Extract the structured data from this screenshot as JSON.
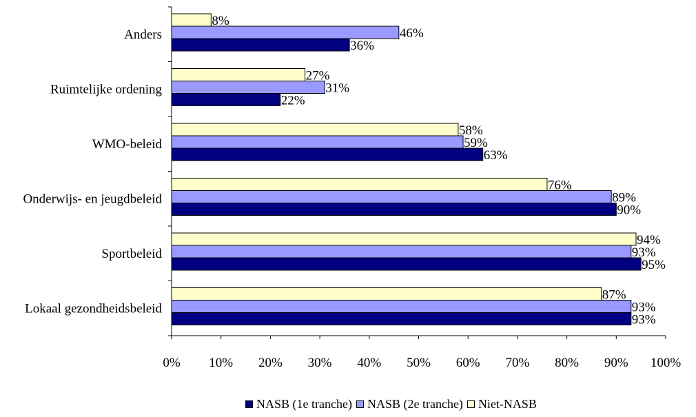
{
  "chart_data": {
    "type": "bar",
    "orientation": "horizontal",
    "categories": [
      "Anders",
      "Ruimtelijke ordening",
      "WMO-beleid",
      "Onderwijs- en jeugdbeleid",
      "Sportbeleid",
      "Lokaal gezondheidsbeleid"
    ],
    "series": [
      {
        "name": "Niet-NASB",
        "color": "#FFFFCC",
        "values": [
          8,
          27,
          58,
          76,
          94,
          87
        ],
        "labels": [
          "8%",
          "27%",
          "58%",
          "76%",
          "94%",
          "87%"
        ]
      },
      {
        "name": "NASB (2e tranche)",
        "color": "#9999FF",
        "values": [
          46,
          31,
          59,
          89,
          93,
          93
        ],
        "labels": [
          "46%",
          "31%",
          "59%",
          "89%",
          "93%",
          "93%"
        ]
      },
      {
        "name": "NASB (1e tranche)",
        "color": "#000080",
        "values": [
          36,
          22,
          63,
          90,
          95,
          93
        ],
        "labels": [
          "36%",
          "22%",
          "63%",
          "90%",
          "95%",
          "93%"
        ]
      }
    ],
    "xlim": [
      0,
      100
    ],
    "x_tick_labels": [
      "0%",
      "10%",
      "20%",
      "30%",
      "40%",
      "50%",
      "60%",
      "70%",
      "80%",
      "90%",
      "100%"
    ],
    "grid": false,
    "legend": {
      "placement": "bottom",
      "entries": [
        {
          "name": "NASB (1e tranche)",
          "color": "#000080"
        },
        {
          "name": "NASB (2e tranche)",
          "color": "#9999FF"
        },
        {
          "name": "Niet-NASB",
          "color": "#FFFFCC"
        }
      ]
    }
  }
}
